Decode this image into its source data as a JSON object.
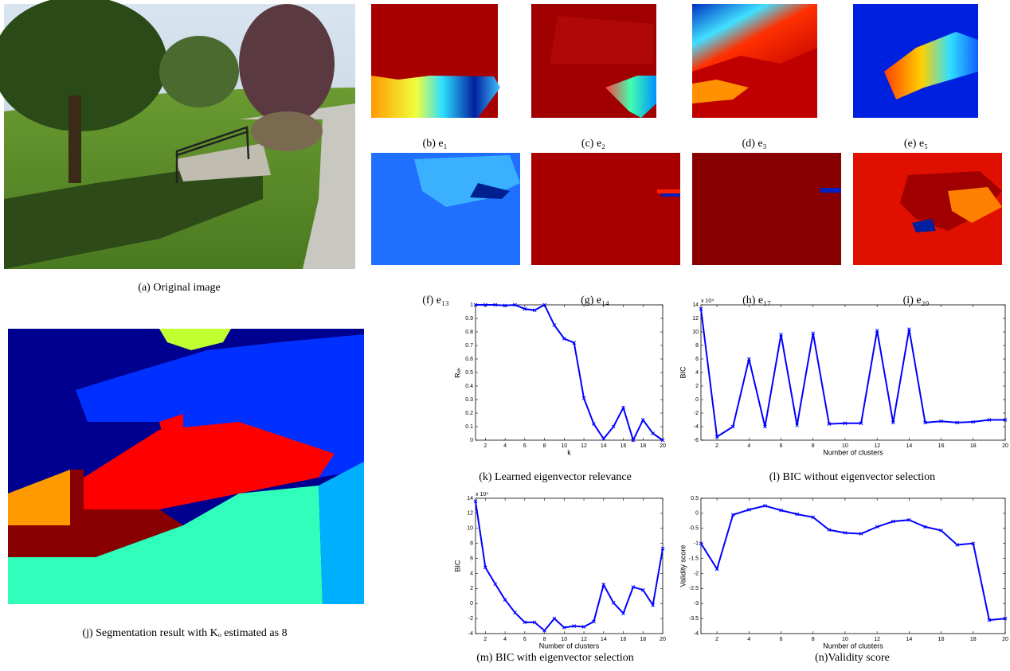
{
  "captions": {
    "a": "(a) Original image",
    "b": "(b) e₁",
    "c": "(c) e₂",
    "d": "(d) e₃",
    "e": "(e) e₅",
    "f": "(f) e₁₃",
    "g": "(g) e₁₄",
    "h": "(h) e₁₇",
    "i": "(i) e₂₀",
    "j": "(j) Segmentation result with Kₒ estimated as 8",
    "k": "(k) Learned eigenvector relevance",
    "l": "(l) BIC without eigenvector selection",
    "m": "(m) BIC with eigenvector selection",
    "n": "(n)Validity score"
  },
  "chart_data": [
    {
      "type": "line",
      "xlabel": "k",
      "ylabel": "Rₑₖ",
      "x": [
        1,
        2,
        3,
        4,
        5,
        6,
        7,
        8,
        9,
        10,
        11,
        12,
        13,
        14,
        15,
        16,
        17,
        18,
        19,
        20
      ],
      "xlim": [
        1,
        20
      ],
      "xticks": [
        2,
        4,
        6,
        8,
        10,
        12,
        14,
        16,
        18,
        20
      ],
      "ylim": [
        0,
        1
      ],
      "yticks": [
        0,
        0.1,
        0.2,
        0.3,
        0.4,
        0.5,
        0.6,
        0.7,
        0.8,
        0.9,
        1
      ],
      "series": [
        {
          "color": "#0000ff",
          "values": [
            1,
            1,
            1,
            0.995,
            1,
            0.97,
            0.96,
            1,
            0.85,
            0.75,
            0.72,
            0.31,
            0.12,
            0.01,
            0.1,
            0.24,
            0,
            0.15,
            0.05,
            0
          ]
        }
      ]
    },
    {
      "type": "line",
      "xlabel": "Number of clusters",
      "ylabel": "BIC",
      "y_scale_label": "x 10⁴",
      "x": [
        1,
        2,
        3,
        4,
        5,
        6,
        7,
        8,
        9,
        10,
        11,
        12,
        13,
        14,
        15,
        16,
        17,
        18,
        19,
        20
      ],
      "xlim": [
        1,
        20
      ],
      "xticks": [
        2,
        4,
        6,
        8,
        10,
        12,
        14,
        16,
        18,
        20
      ],
      "ylim": [
        -6,
        14
      ],
      "yticks": [
        -6,
        -4,
        -2,
        0,
        2,
        4,
        6,
        8,
        10,
        12,
        14
      ],
      "series": [
        {
          "color": "#0000ff",
          "values": [
            13.4,
            -5.5,
            -4,
            6,
            -4,
            9.6,
            -3.8,
            9.8,
            -3.6,
            -3.5,
            -3.5,
            10.2,
            -3.4,
            10.4,
            -3.4,
            -3.2,
            -3.4,
            -3.3,
            -3,
            -3
          ]
        }
      ]
    },
    {
      "type": "line",
      "xlabel": "Number of clusters",
      "ylabel": "BIC",
      "y_scale_label": "x 10⁴",
      "x": [
        1,
        2,
        3,
        4,
        5,
        6,
        7,
        8,
        9,
        10,
        11,
        12,
        13,
        14,
        15,
        16,
        17,
        18,
        19,
        20
      ],
      "xlim": [
        1,
        20
      ],
      "xticks": [
        2,
        4,
        6,
        8,
        10,
        12,
        14,
        16,
        18,
        20
      ],
      "ylim": [
        -4,
        14
      ],
      "yticks": [
        -4,
        -2,
        0,
        2,
        4,
        6,
        8,
        10,
        12,
        14
      ],
      "series": [
        {
          "color": "#0000ff",
          "values": [
            13.6,
            4.8,
            2.6,
            0.5,
            -1.2,
            -2.5,
            -2.5,
            -3.6,
            -2,
            -3.2,
            -3,
            -3.1,
            -2.4,
            2.5,
            0.1,
            -1.3,
            2.2,
            1.8,
            -0.2,
            7.3
          ]
        }
      ]
    },
    {
      "type": "line",
      "xlabel": "Number of clusters",
      "ylabel": "Validity score",
      "x": [
        1,
        2,
        3,
        4,
        5,
        6,
        7,
        8,
        9,
        10,
        11,
        12,
        13,
        14,
        15,
        16,
        17,
        18,
        19,
        20
      ],
      "xlim": [
        1,
        20
      ],
      "xticks": [
        2,
        4,
        6,
        8,
        10,
        12,
        14,
        16,
        18,
        20
      ],
      "ylim": [
        -4,
        0.5
      ],
      "yticks": [
        -4,
        -3.5,
        -3,
        -2.5,
        -2,
        -1.5,
        -1,
        -0.5,
        0,
        0.5
      ],
      "series": [
        {
          "color": "#0000ff",
          "values": [
            -1,
            -1.85,
            -0.05,
            0.12,
            0.25,
            0.1,
            -0.03,
            -0.13,
            -0.55,
            -0.65,
            -0.68,
            -0.45,
            -0.27,
            -0.22,
            -0.45,
            -0.57,
            -1.05,
            -1,
            -3.55,
            -3.5
          ]
        }
      ]
    }
  ]
}
